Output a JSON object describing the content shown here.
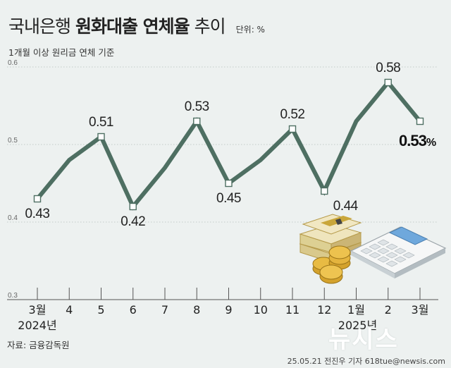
{
  "title": {
    "prefix": "국내은행",
    "bold": "원화대출 연체율",
    "suffix": "추이"
  },
  "unit_label": "단위: %",
  "subtitle": "1개월 이상 원리금 연체 기준",
  "source": "자료: 금융감독원",
  "credit": "25.05.21 전진우 기자 618tue@newsis.com",
  "logo_text": "뉴시스",
  "colors": {
    "line": "#4e6f62",
    "background": "#edf1f0",
    "marker_fill": "#ffffff",
    "grid": "#9aa5a2"
  },
  "decorations": [
    "money-bundle-icon",
    "coin-stack-icon",
    "calculator-icon"
  ],
  "chart_data": {
    "type": "line",
    "categories": [
      "3월",
      "4",
      "5",
      "6",
      "7",
      "8",
      "9",
      "10",
      "11",
      "12",
      "1월",
      "2",
      "3월"
    ],
    "year_labels": [
      {
        "index": 0,
        "text": "2024년"
      },
      {
        "index": 10,
        "text": "2025년"
      }
    ],
    "values": [
      0.43,
      0.48,
      0.51,
      0.42,
      0.47,
      0.53,
      0.45,
      0.48,
      0.52,
      0.44,
      0.53,
      0.58,
      0.53
    ],
    "labeled_points": [
      0,
      2,
      3,
      5,
      6,
      8,
      9,
      11
    ],
    "highlight_point": {
      "index": 12,
      "label": "0.53",
      "unit": "%"
    },
    "y_ticks": [
      "0.3",
      "0.4",
      "0.5",
      "0.6"
    ],
    "ylim": [
      0.3,
      0.6
    ],
    "grid": true
  }
}
